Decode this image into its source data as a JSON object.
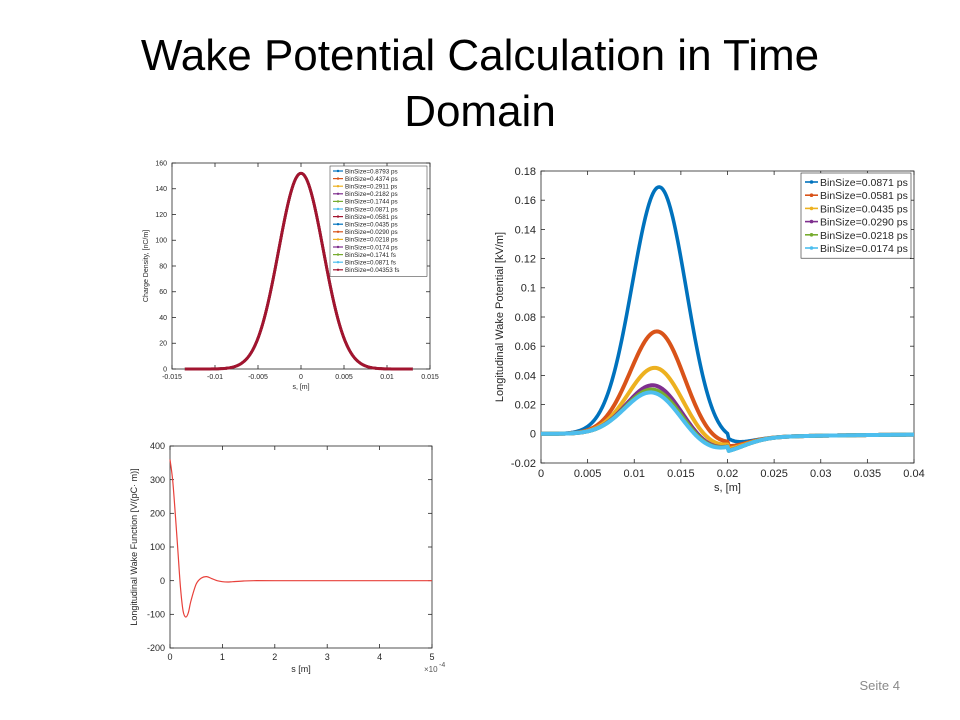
{
  "slide": {
    "title": "Wake Potential Calculation in Time Domain",
    "page_label": "Seite 4"
  },
  "chart_data": [
    {
      "type": "line",
      "ylabel": "Charge Density, [nC/m]",
      "xlabel": "s, [m]",
      "xlim": [
        -0.015,
        0.015
      ],
      "ylim": [
        0,
        160
      ],
      "xticks": [
        -0.015,
        -0.01,
        -0.005,
        0,
        0.005,
        0.01,
        0.015
      ],
      "xtick_labels": [
        "-0.015",
        "-0.01",
        "-0.005",
        "0",
        "0.005",
        "0.01",
        "0.015"
      ],
      "yticks": [
        0,
        20,
        40,
        60,
        80,
        100,
        120,
        140,
        160
      ],
      "ytick_labels": [
        "0",
        "20",
        "40",
        "60",
        "80",
        "100",
        "120",
        "140",
        "160"
      ],
      "grid": false,
      "legend_position": "top-right",
      "curve": {
        "shape": "gaussian",
        "peak": 152,
        "center": 0,
        "sigma": 0.0026,
        "x_range": [
          -0.013,
          0.013
        ]
      },
      "series": [
        {
          "name": "BinSize=0.8793 ps",
          "color": "#0072BD"
        },
        {
          "name": "BinSize=0.4374 ps",
          "color": "#D95319"
        },
        {
          "name": "BinSize=0.2911 ps",
          "color": "#EDB120"
        },
        {
          "name": "BinSize=0.2182 ps",
          "color": "#7E2F8E"
        },
        {
          "name": "BinSize=0.1744 ps",
          "color": "#77AC30"
        },
        {
          "name": "BinSize=0.0871 ps",
          "color": "#4DBEEE"
        },
        {
          "name": "BinSize=0.0581 ps",
          "color": "#A2142F"
        },
        {
          "name": "BinSize=0.0435 ps",
          "color": "#0072BD"
        },
        {
          "name": "BinSize=0.0290 ps",
          "color": "#D95319"
        },
        {
          "name": "BinSize=0.0218 ps",
          "color": "#EDB120"
        },
        {
          "name": "BinSize=0.0174 ps",
          "color": "#7E2F8E"
        },
        {
          "name": "BinSize=0.1741 fs",
          "color": "#77AC30"
        },
        {
          "name": "BinSize=0.0871 fs",
          "color": "#4DBEEE"
        },
        {
          "name": "BinSize=0.04353 fs",
          "color": "#A2142F"
        }
      ]
    },
    {
      "type": "line",
      "ylabel": "Longitudinal Wake Potential [kV/m]",
      "xlabel": "s, [m]",
      "xlim": [
        0,
        0.04
      ],
      "ylim": [
        -0.02,
        0.18
      ],
      "xticks": [
        0,
        0.005,
        0.01,
        0.015,
        0.02,
        0.025,
        0.03,
        0.035,
        0.04
      ],
      "xtick_labels": [
        "0",
        "0.005",
        "0.01",
        "0.015",
        "0.02",
        "0.025",
        "0.03",
        "0.035",
        "0.04"
      ],
      "yticks": [
        -0.02,
        0,
        0.02,
        0.04,
        0.06,
        0.08,
        0.1,
        0.12,
        0.14,
        0.16,
        0.18
      ],
      "ytick_labels": [
        "-0.02",
        "0",
        "0.02",
        "0.04",
        "0.06",
        "0.08",
        "0.1",
        "0.12",
        "0.14",
        "0.16",
        "0.18"
      ],
      "grid": false,
      "legend_position": "top-right",
      "series": [
        {
          "name": "BinSize=0.0871 ps",
          "color": "#0072BD",
          "peak": 0.17,
          "peak_s": 0.0127,
          "min": -0.008
        },
        {
          "name": "BinSize=0.0581 ps",
          "color": "#D95319",
          "peak": 0.071,
          "peak_s": 0.0125,
          "min": -0.009
        },
        {
          "name": "BinSize=0.0435 ps",
          "color": "#EDB120",
          "peak": 0.046,
          "peak_s": 0.0123,
          "min": -0.01
        },
        {
          "name": "BinSize=0.0290 ps",
          "color": "#7E2F8E",
          "peak": 0.034,
          "peak_s": 0.0121,
          "min": -0.011
        },
        {
          "name": "BinSize=0.0218 ps",
          "color": "#77AC30",
          "peak": 0.031,
          "peak_s": 0.012,
          "min": -0.011
        },
        {
          "name": "BinSize=0.0174 ps",
          "color": "#4DBEEE",
          "peak": 0.029,
          "peak_s": 0.0119,
          "min": -0.011
        }
      ]
    },
    {
      "type": "line",
      "ylabel": "Longitudinal Wake Function [V/(pC· m)]",
      "xlabel": "s [m]",
      "x_multiplier": "×10",
      "x_multiplier_exp": "-4",
      "xlim": [
        0,
        5
      ],
      "ylim": [
        -200,
        400
      ],
      "xticks": [
        0,
        1,
        2,
        3,
        4,
        5
      ],
      "xtick_labels": [
        "0",
        "1",
        "2",
        "3",
        "4",
        "5"
      ],
      "yticks": [
        -200,
        -100,
        0,
        100,
        200,
        300,
        400
      ],
      "ytick_labels": [
        "-200",
        "-100",
        "0",
        "100",
        "200",
        "300",
        "400"
      ],
      "grid": false,
      "series": [
        {
          "color": "#E8413B",
          "x": [
            0,
            0.05,
            0.1,
            0.15,
            0.2,
            0.25,
            0.3,
            0.35,
            0.4,
            0.5,
            0.6,
            0.7,
            0.8,
            0.9,
            1.0,
            1.1,
            1.2,
            1.4,
            1.6,
            2.0,
            3.0,
            4.0,
            5.0
          ],
          "y": [
            360,
            300,
            200,
            90,
            -20,
            -90,
            -108,
            -95,
            -60,
            -10,
            8,
            12,
            6,
            0,
            -3,
            -4,
            -3,
            -1,
            0,
            0,
            0,
            0,
            0
          ]
        }
      ]
    }
  ]
}
